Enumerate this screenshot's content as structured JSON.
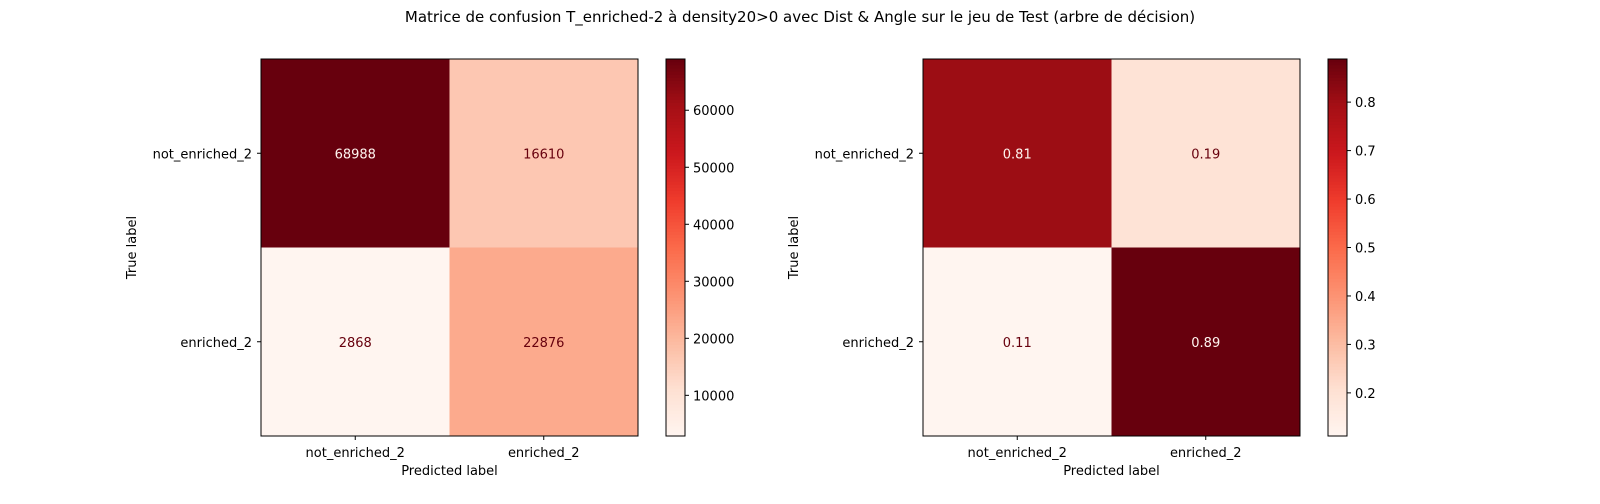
{
  "figure_title": "Matrice de confusion T_enriched-2 à density20>0 avec Dist & Angle sur le jeu de Test (arbre de décision)",
  "chart_data": [
    {
      "type": "heatmap",
      "colormap": "Reds",
      "xlabel": "Predicted label",
      "ylabel": "True label",
      "x_categories": [
        "not_enriched_2",
        "enriched_2"
      ],
      "y_categories": [
        "not_enriched_2",
        "enriched_2"
      ],
      "values": [
        [
          68988,
          16610
        ],
        [
          2868,
          22876
        ]
      ],
      "cell_labels": [
        [
          "68988",
          "16610"
        ],
        [
          "2868",
          "22876"
        ]
      ],
      "colorbar": {
        "vmin": 2868,
        "vmax": 68988,
        "ticks": [
          10000,
          20000,
          30000,
          40000,
          50000,
          60000
        ],
        "tick_labels": [
          "10000",
          "20000",
          "30000",
          "40000",
          "50000",
          "60000"
        ]
      }
    },
    {
      "type": "heatmap",
      "colormap": "Reds",
      "xlabel": "Predicted label",
      "ylabel": "True label",
      "x_categories": [
        "not_enriched_2",
        "enriched_2"
      ],
      "y_categories": [
        "not_enriched_2",
        "enriched_2"
      ],
      "values": [
        [
          0.806,
          0.194
        ],
        [
          0.111,
          0.889
        ]
      ],
      "cell_labels": [
        [
          "0.81",
          "0.19"
        ],
        [
          "0.11",
          "0.89"
        ]
      ],
      "colorbar": {
        "vmin": 0.111,
        "vmax": 0.889,
        "ticks": [
          0.2,
          0.3,
          0.4,
          0.5,
          0.6,
          0.7,
          0.8
        ],
        "tick_labels": [
          "0.2",
          "0.3",
          "0.4",
          "0.5",
          "0.6",
          "0.7",
          "0.8"
        ]
      }
    }
  ]
}
